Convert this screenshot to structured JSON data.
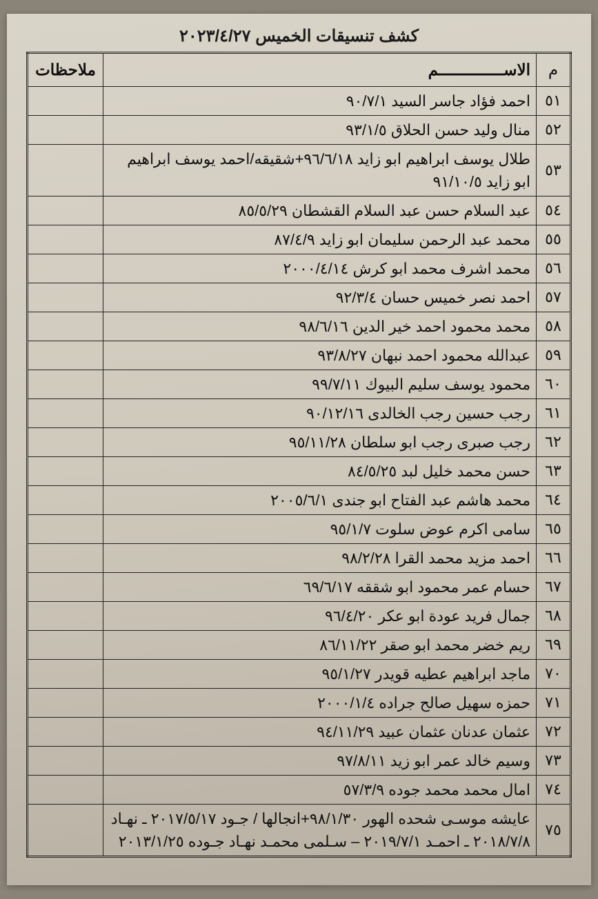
{
  "title": "كشف تنسيقات الخميس ٢٠٢٣/٤/٢٧",
  "columns": {
    "num": "م",
    "name": "الاســــــــــــــم",
    "notes": "ملاحظات"
  },
  "rows": [
    {
      "num": "٥١",
      "name": "احمد فؤاد جاسر السيد ٩٠/٧/١",
      "notes": ""
    },
    {
      "num": "٥٢",
      "name": "منال وليد حسن الحلاق ٩٣/١/٥",
      "notes": ""
    },
    {
      "num": "٥٣",
      "name": "طلال يوسف ابراهيم ابو زايد ٩٦/٦/١٨+شقيقه/احمد يوسف ابراهيم ابو زايد ٩١/١٠/٥",
      "notes": ""
    },
    {
      "num": "٥٤",
      "name": "عبد السلام حسن عبد السلام القشطان ٨٥/٥/٢٩",
      "notes": ""
    },
    {
      "num": "٥٥",
      "name": "محمد عبد الرحمن سليمان ابو زايد ٨٧/٤/٩",
      "notes": ""
    },
    {
      "num": "٥٦",
      "name": "محمد اشرف محمد ابو كرش ٢٠٠٠/٤/١٤",
      "notes": ""
    },
    {
      "num": "٥٧",
      "name": "احمد نصر خميس حسان ٩٢/٣/٤",
      "notes": ""
    },
    {
      "num": "٥٨",
      "name": "محمد محمود احمد خير الدين ٩٨/٦/١٦",
      "notes": ""
    },
    {
      "num": "٥٩",
      "name": "عبدالله محمود احمد نبهان ٩٣/٨/٢٧",
      "notes": ""
    },
    {
      "num": "٦٠",
      "name": "محمود يوسف سليم البيوك ٩٩/٧/١١",
      "notes": ""
    },
    {
      "num": "٦١",
      "name": "رجب حسين رجب الخالدى ٩٠/١٢/١٦",
      "notes": ""
    },
    {
      "num": "٦٢",
      "name": "رجب صبرى رجب ابو سلطان ٩٥/١١/٢٨",
      "notes": ""
    },
    {
      "num": "٦٣",
      "name": "حسن محمد خليل لبد ٨٤/٥/٢٥",
      "notes": ""
    },
    {
      "num": "٦٤",
      "name": "محمد هاشم عبد الفتاح ابو جندى ٢٠٠٥/٦/١",
      "notes": ""
    },
    {
      "num": "٦٥",
      "name": "سامى اكرم عوض سلوت ٩٥/١/٧",
      "notes": ""
    },
    {
      "num": "٦٦",
      "name": "احمد مزيد محمد القرا ٩٨/٢/٢٨",
      "notes": ""
    },
    {
      "num": "٦٧",
      "name": "حسام عمر محمود ابو شققه ٦٩/٦/١٧",
      "notes": ""
    },
    {
      "num": "٦٨",
      "name": "جمال فريد عودة ابو عكر ٩٦/٤/٢٠",
      "notes": ""
    },
    {
      "num": "٦٩",
      "name": "ريم خضر محمد ابو صقر ٨٦/١١/٢٢",
      "notes": ""
    },
    {
      "num": "٧٠",
      "name": "ماجد ابراهيم عطيه قويدر ٩٥/١/٢٧",
      "notes": ""
    },
    {
      "num": "٧١",
      "name": "حمزه سهيل صالح جراده ٢٠٠٠/١/٤",
      "notes": ""
    },
    {
      "num": "٧٢",
      "name": "عثمان عدنان عثمان عبيد ٩٤/١١/٢٩",
      "notes": ""
    },
    {
      "num": "٧٣",
      "name": "وسيم خالد عمر ابو زيد ٩٧/٨/١١",
      "notes": ""
    },
    {
      "num": "٧٤",
      "name": "امال محمد محمد جوده ٥٧/٣/٩",
      "notes": ""
    },
    {
      "num": "٧٥",
      "name": "عايشه موسـى شحده الهور ٩٨/١/٣٠+انجالها / جـود ٢٠١٧/٥/١٧ ـ نهـاد ٢٠١٨/٧/٨ ـ احمـد ٢٠١٩/٧/١ – سـلمى محمـد نهـاد جـوده ٢٠١٣/١/٢٥",
      "notes": ""
    }
  ]
}
